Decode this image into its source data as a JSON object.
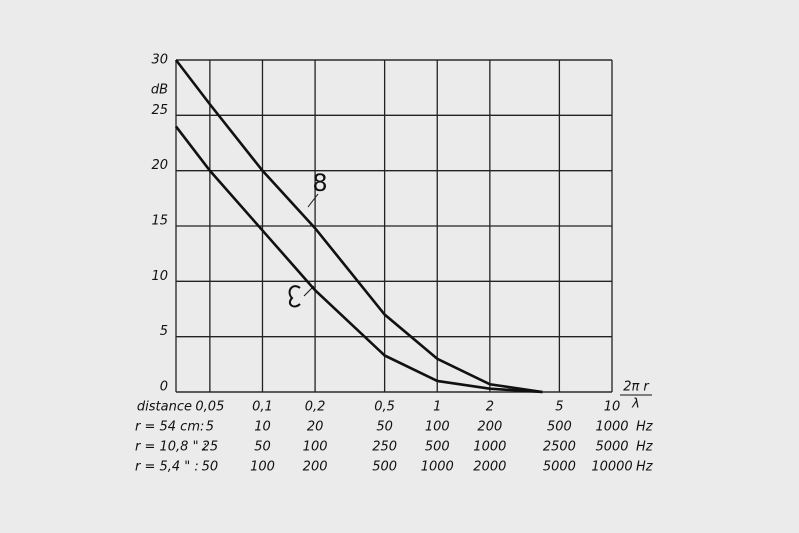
{
  "chart_data": {
    "type": "line",
    "y_label": "dB",
    "x_label": {
      "numerator": "2π r",
      "denominator": "λ"
    },
    "x_row_label": "distance",
    "x": [
      0.032,
      0.05,
      0.1,
      0.2,
      0.5,
      1,
      2,
      4
    ],
    "series": [
      {
        "name": "8",
        "color": "#111111",
        "values": [
          30,
          26,
          20,
          14.8,
          7,
          3,
          0.7,
          0
        ]
      },
      {
        "color": "#111111",
        "values": [
          24,
          20,
          14.6,
          9.2,
          3.3,
          1,
          0.3,
          0
        ]
      }
    ],
    "log_x": true,
    "xlim": [
      0.032,
      10
    ],
    "ylim": [
      0,
      30
    ],
    "xticks": [
      {
        "value": 0.05,
        "label": "0,05"
      },
      {
        "value": 0.1,
        "label": "0,1"
      },
      {
        "value": 0.2,
        "label": "0,2"
      },
      {
        "value": 0.5,
        "label": "0,5"
      },
      1,
      2,
      5,
      10
    ],
    "yticks": [
      0,
      5,
      10,
      15,
      20,
      25,
      30
    ],
    "grid": true,
    "frequency_rows": [
      {
        "label": "r = 54 cm:",
        "values": [
          5,
          10,
          20,
          50,
          100,
          200,
          500,
          1000
        ],
        "unit": "Hz"
      },
      {
        "label": "r = 10,8 \" :",
        "values": [
          25,
          50,
          100,
          250,
          500,
          1000,
          2500,
          5000
        ],
        "unit": "Hz"
      },
      {
        "label": "r = 5,4 \" :",
        "values": [
          50,
          100,
          200,
          500,
          1000,
          2000,
          5000,
          10000
        ],
        "unit": "Hz"
      }
    ]
  }
}
